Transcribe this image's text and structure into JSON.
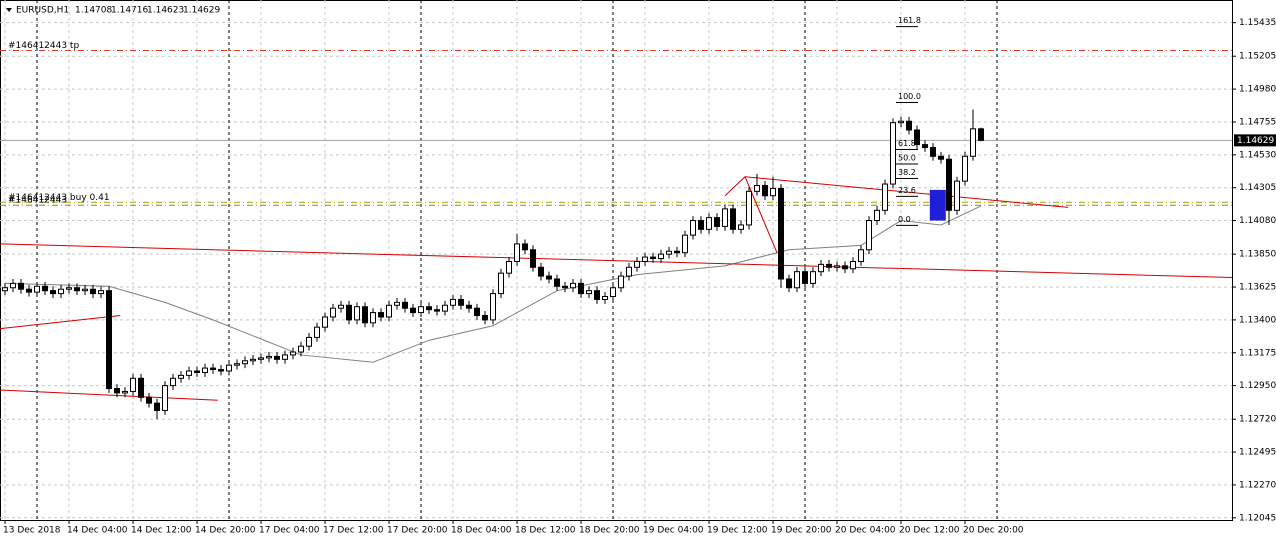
{
  "chart_data": {
    "type": "candlestick",
    "symbol": "EURUSD,H1",
    "categories": [
      "13 Dec 2018",
      null,
      null,
      null,
      null,
      null,
      null,
      null,
      "14 Dec 04:00",
      null,
      null,
      null,
      null,
      null,
      null,
      null,
      "14 Dec 12:00",
      null,
      null,
      null,
      null,
      null,
      null,
      null,
      "14 Dec 20:00",
      null,
      null,
      null,
      null,
      null,
      null,
      null,
      "17 Dec 04:00",
      null,
      null,
      null,
      null,
      null,
      null,
      null,
      "17 Dec 12:00",
      null,
      null,
      null,
      null,
      null,
      null,
      null,
      "17 Dec 20:00",
      null,
      null,
      null,
      null,
      null,
      null,
      null,
      "18 Dec 04:00",
      null,
      null,
      null,
      null,
      null,
      null,
      null,
      "18 Dec 12:00",
      null,
      null,
      null,
      null,
      null,
      null,
      null,
      "18 Dec 20:00",
      null,
      null,
      null,
      null,
      null,
      null,
      null,
      "19 Dec 04:00",
      null,
      null,
      null,
      null,
      null,
      null,
      null,
      "19 Dec 12:00",
      null,
      null,
      null,
      null,
      null,
      null,
      null,
      "19 Dec 20:00",
      null,
      null,
      null,
      null,
      null,
      null,
      null,
      "20 Dec 04:00",
      null,
      null,
      null,
      null,
      null,
      null,
      null,
      "20 Dec 12:00",
      null,
      null,
      null,
      null,
      null,
      null,
      null,
      "20 Dec 20:00",
      null,
      null
    ],
    "open": [
      1.136,
      1.1362,
      1.1365,
      1.1361,
      1.1359,
      1.1363,
      1.136,
      1.1358,
      1.1361,
      1.1362,
      1.136,
      1.1361,
      1.1358,
      1.136,
      1.1293,
      1.129,
      1.1291,
      1.13,
      1.1287,
      1.1283,
      1.1278,
      1.1295,
      1.13,
      1.1302,
      1.1305,
      1.1304,
      1.1307,
      1.1306,
      1.1305,
      1.1309,
      1.131,
      1.1312,
      1.1313,
      1.1314,
      1.1315,
      1.1313,
      1.1316,
      1.1318,
      1.1322,
      1.1328,
      1.1335,
      1.1342,
      1.1348,
      1.135,
      1.134,
      1.1349,
      1.1338,
      1.1345,
      1.1342,
      1.135,
      1.1352,
      1.1348,
      1.1345,
      1.1349,
      1.1347,
      1.1346,
      1.135,
      1.1354,
      1.135,
      1.1348,
      1.1343,
      1.134,
      1.1358,
      1.1372,
      1.138,
      1.1392,
      1.1388,
      1.1376,
      1.137,
      1.1368,
      1.1363,
      1.1362,
      1.1365,
      1.1358,
      1.136,
      1.1354,
      1.1356,
      1.1362,
      1.137,
      1.1376,
      1.138,
      1.1383,
      1.1382,
      1.1385,
      1.1387,
      1.1386,
      1.1398,
      1.1408,
      1.1402,
      1.141,
      1.1404,
      1.1416,
      1.1402,
      1.1405,
      1.1428,
      1.1432,
      1.1425,
      1.143,
      1.1368,
      1.1362,
      1.1373,
      1.1365,
      1.1373,
      1.1378,
      1.1376,
      1.1377,
      1.1375,
      1.138,
      1.1388,
      1.1408,
      1.1415,
      1.1433,
      1.1475,
      1.1476,
      1.147,
      1.146,
      1.1458,
      1.1452,
      1.145,
      1.1415,
      1.1435,
      1.1452,
      1.14708
    ],
    "high": [
      1.1365,
      1.1368,
      1.1368,
      1.1364,
      1.1366,
      1.1366,
      1.1363,
      1.1364,
      1.1365,
      1.1365,
      1.1364,
      1.1364,
      1.1363,
      1.1363,
      1.1296,
      1.1294,
      1.1303,
      1.1303,
      1.129,
      1.1286,
      1.1298,
      1.1303,
      1.1305,
      1.1308,
      1.1308,
      1.131,
      1.131,
      1.1309,
      1.1312,
      1.1313,
      1.1315,
      1.1316,
      1.1317,
      1.1318,
      1.1318,
      1.1319,
      1.1321,
      1.1325,
      1.1331,
      1.1338,
      1.1345,
      1.1351,
      1.1353,
      1.1353,
      1.1352,
      1.1352,
      1.1348,
      1.1348,
      1.1353,
      1.1355,
      1.1355,
      1.1351,
      1.1352,
      1.1352,
      1.135,
      1.1353,
      1.1357,
      1.1357,
      1.1353,
      1.1351,
      1.1346,
      1.1361,
      1.1375,
      1.1383,
      1.1399,
      1.1395,
      1.1391,
      1.1379,
      1.1373,
      1.1371,
      1.1366,
      1.1368,
      1.1368,
      1.1363,
      1.1363,
      1.1359,
      1.1365,
      1.1373,
      1.1379,
      1.1383,
      1.1386,
      1.1386,
      1.1388,
      1.139,
      1.139,
      1.1401,
      1.1411,
      1.1411,
      1.1413,
      1.1413,
      1.1419,
      1.1419,
      1.1408,
      1.1431,
      1.144,
      1.1435,
      1.1438,
      1.1433,
      1.1371,
      1.1376,
      1.1376,
      1.1376,
      1.1381,
      1.1381,
      1.138,
      1.138,
      1.1383,
      1.1391,
      1.1411,
      1.1418,
      1.1436,
      1.1478,
      1.1479,
      1.1479,
      1.1473,
      1.1463,
      1.1461,
      1.1455,
      1.1453,
      1.1438,
      1.1455,
      1.1484,
      1.14716
    ],
    "low": [
      1.1357,
      1.1359,
      1.1358,
      1.1356,
      1.1356,
      1.1357,
      1.1355,
      1.1355,
      1.1358,
      1.1357,
      1.1357,
      1.1355,
      1.1355,
      1.129,
      1.1287,
      1.1287,
      1.1288,
      1.1284,
      1.128,
      1.1272,
      1.1275,
      1.1292,
      1.1297,
      1.1299,
      1.1301,
      1.1301,
      1.1303,
      1.1302,
      1.1302,
      1.1306,
      1.1307,
      1.1309,
      1.131,
      1.1311,
      1.131,
      1.131,
      1.1313,
      1.1315,
      1.1319,
      1.1325,
      1.1332,
      1.1339,
      1.1345,
      1.1337,
      1.1337,
      1.1335,
      1.1335,
      1.1339,
      1.1339,
      1.1347,
      1.1345,
      1.1342,
      1.1342,
      1.1344,
      1.1343,
      1.1343,
      1.1347,
      1.1347,
      1.1345,
      1.134,
      1.1337,
      1.1337,
      1.1355,
      1.1369,
      1.1377,
      1.1385,
      1.1373,
      1.1367,
      1.1365,
      1.136,
      1.1359,
      1.1359,
      1.1355,
      1.1355,
      1.1351,
      1.1351,
      1.1353,
      1.1359,
      1.1367,
      1.1373,
      1.1377,
      1.1379,
      1.1379,
      1.1382,
      1.1383,
      1.1383,
      1.1395,
      1.1399,
      1.1399,
      1.1401,
      1.1401,
      1.1399,
      1.1399,
      1.1402,
      1.1425,
      1.1422,
      1.1422,
      1.1362,
      1.1359,
      1.1359,
      1.1362,
      1.1362,
      1.137,
      1.1373,
      1.1373,
      1.1372,
      1.1372,
      1.1377,
      1.1385,
      1.1405,
      1.1412,
      1.143,
      1.1472,
      1.1467,
      1.1457,
      1.1455,
      1.1449,
      1.1447,
      1.1405,
      1.1412,
      1.1432,
      1.1449,
      1.14623
    ],
    "close": [
      1.1362,
      1.1365,
      1.1361,
      1.1359,
      1.1363,
      1.136,
      1.1358,
      1.1361,
      1.1362,
      1.136,
      1.1361,
      1.1358,
      1.136,
      1.1293,
      1.129,
      1.1291,
      1.13,
      1.1287,
      1.1283,
      1.1278,
      1.1295,
      1.13,
      1.1302,
      1.1305,
      1.1304,
      1.1307,
      1.1306,
      1.1305,
      1.1309,
      1.131,
      1.1312,
      1.1313,
      1.1314,
      1.1315,
      1.1313,
      1.1316,
      1.1318,
      1.1322,
      1.1328,
      1.1335,
      1.1342,
      1.1348,
      1.135,
      1.134,
      1.1349,
      1.1338,
      1.1345,
      1.1342,
      1.135,
      1.1352,
      1.1348,
      1.1345,
      1.1349,
      1.1347,
      1.1346,
      1.135,
      1.1354,
      1.135,
      1.1348,
      1.1343,
      1.134,
      1.1358,
      1.1372,
      1.138,
      1.1392,
      1.1388,
      1.1376,
      1.137,
      1.1368,
      1.1363,
      1.1362,
      1.1365,
      1.1358,
      1.136,
      1.1354,
      1.1356,
      1.1362,
      1.137,
      1.1376,
      1.138,
      1.1383,
      1.1382,
      1.1385,
      1.1387,
      1.1386,
      1.1398,
      1.1408,
      1.1402,
      1.141,
      1.1404,
      1.1416,
      1.1402,
      1.1405,
      1.1428,
      1.1432,
      1.1425,
      1.143,
      1.1368,
      1.1362,
      1.1373,
      1.1365,
      1.1373,
      1.1378,
      1.1376,
      1.1377,
      1.1375,
      1.138,
      1.1388,
      1.1408,
      1.1415,
      1.1433,
      1.1475,
      1.1476,
      1.147,
      1.146,
      1.1458,
      1.1452,
      1.145,
      1.1415,
      1.1435,
      1.1452,
      1.14708,
      1.14629
    ],
    "up_color": "#ffffff",
    "down_color": "#000000",
    "ylim": [
      1.1203,
      1.1559
    ],
    "yticks": [
      1.12045,
      {
        "value": 1.1227,
        "label": "1.12270"
      },
      1.12495,
      {
        "value": 1.1272,
        "label": "1.12720"
      },
      {
        "value": 1.1295,
        "label": "1.12950"
      },
      1.13175,
      {
        "value": 1.134,
        "label": "1.13400"
      },
      1.13625,
      {
        "value": 1.1385,
        "label": "1.13850"
      },
      {
        "value": 1.1408,
        "label": "1.14080"
      },
      1.14305,
      {
        "value": 1.1453,
        "label": "1.14530"
      },
      1.14755,
      {
        "value": 1.1498,
        "label": "1.14980"
      },
      1.15205,
      1.15435
    ],
    "grid": true,
    "separators": [
      4,
      28,
      52,
      76,
      100,
      124
    ],
    "moving_average": {
      "color": "#808080",
      "x": [
        0,
        13,
        20,
        26,
        37,
        46,
        53,
        61,
        69,
        79,
        90,
        98,
        107,
        112,
        117,
        122
      ],
      "values": [
        1.1365,
        1.1363,
        1.1352,
        1.134,
        1.1316,
        1.1311,
        1.1326,
        1.1336,
        1.136,
        1.1371,
        1.1377,
        1.1388,
        1.1391,
        1.1408,
        1.1405,
        1.1418
      ]
    },
    "trendlines": [
      {
        "color": "#d40000",
        "x": [
          -0.6,
          153.4
        ],
        "y": [
          1.1392,
          1.1369
        ]
      },
      {
        "color": "#d40000",
        "x": [
          -0.6,
          14.4
        ],
        "y": [
          1.1334,
          1.1343
        ]
      },
      {
        "color": "#d40000",
        "x": [
          -0.6,
          26.6
        ],
        "y": [
          1.1292,
          1.1285
        ]
      },
      {
        "color": "#d40000",
        "x": [
          92.5,
          132.9
        ],
        "y": [
          1.1438,
          1.1417
        ]
      },
      {
        "color": "#d40000",
        "x": [
          90,
          92.5,
          96.5
        ],
        "y": [
          1.1425,
          1.1438,
          1.1386
        ]
      }
    ],
    "orders": [
      {
        "label": "#146412443 tp",
        "price": 1.15244,
        "color": "#e0401e"
      },
      {
        "label": "#146412443 buy 0.41",
        "price": 1.14205,
        "color": "#9aab00"
      },
      {
        "label": "#146412443",
        "price": 1.14185,
        "color": "#b07a2a"
      }
    ],
    "fibo": {
      "start_price": 1.14047,
      "end_price": 1.14888,
      "levels": [
        {
          "value": 0,
          "label": "0.0"
        },
        23.6,
        38.2,
        {
          "value": 50,
          "label": "50.0"
        },
        61.8,
        {
          "value": 100,
          "label": "100.0"
        },
        161.8
      ]
    },
    "rectangle": {
      "color": "#1f1fd8",
      "x": [
        115.6,
        117.6
      ],
      "y": [
        1.1429,
        1.1408
      ]
    }
  }
}
